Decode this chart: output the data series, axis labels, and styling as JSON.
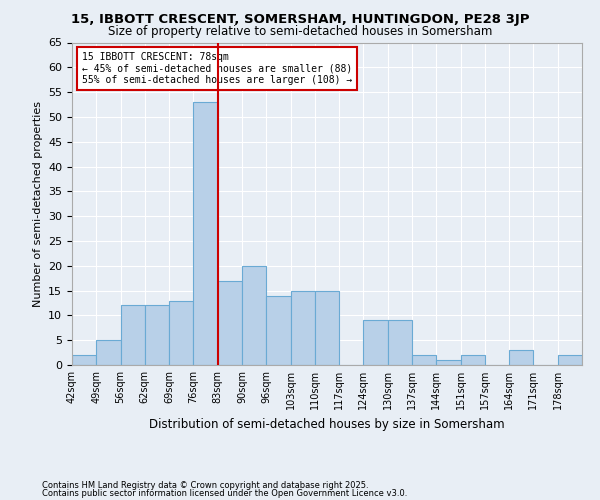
{
  "title1": "15, IBBOTT CRESCENT, SOMERSHAM, HUNTINGDON, PE28 3JP",
  "title2": "Size of property relative to semi-detached houses in Somersham",
  "xlabel": "Distribution of semi-detached houses by size in Somersham",
  "ylabel": "Number of semi-detached properties",
  "footnote1": "Contains HM Land Registry data © Crown copyright and database right 2025.",
  "footnote2": "Contains public sector information licensed under the Open Government Licence v3.0.",
  "bin_labels": [
    "42sqm",
    "49sqm",
    "56sqm",
    "62sqm",
    "69sqm",
    "76sqm",
    "83sqm",
    "90sqm",
    "96sqm",
    "103sqm",
    "110sqm",
    "117sqm",
    "124sqm",
    "130sqm",
    "137sqm",
    "144sqm",
    "151sqm",
    "157sqm",
    "164sqm",
    "171sqm",
    "178sqm"
  ],
  "counts": [
    2,
    5,
    12,
    12,
    13,
    53,
    17,
    20,
    14,
    15,
    15,
    0,
    9,
    9,
    2,
    1,
    2,
    0,
    3,
    0,
    2
  ],
  "bar_color": "#b8d0e8",
  "bar_edge_color": "#6aaad4",
  "property_line_bin_index": 5,
  "annotation_title": "15 IBBOTT CRESCENT: 78sqm",
  "annotation_line1": "← 45% of semi-detached houses are smaller (88)",
  "annotation_line2": "55% of semi-detached houses are larger (108) →",
  "annotation_color": "#cc0000",
  "background_color": "#e8eef5",
  "grid_color": "#ffffff",
  "ylim": [
    0,
    65
  ],
  "yticks": [
    0,
    5,
    10,
    15,
    20,
    25,
    30,
    35,
    40,
    45,
    50,
    55,
    60,
    65
  ]
}
